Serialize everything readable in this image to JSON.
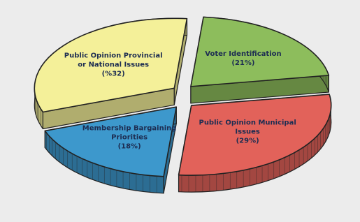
{
  "chart_data": {
    "type": "pie",
    "categories": [
      "Public Opinion Provincial or National Issues",
      "Voter Identification",
      "Public Opinion Municipal Issues",
      "Membership Bargaining Priorities"
    ],
    "values": [
      32,
      21,
      29,
      18
    ],
    "value_labels": [
      "(%32)",
      "(21%)",
      "(29%)",
      "(18%)"
    ],
    "colors": [
      "#f4f099",
      "#8dbd5c",
      "#e2625a",
      "#3d98cc"
    ]
  }
}
